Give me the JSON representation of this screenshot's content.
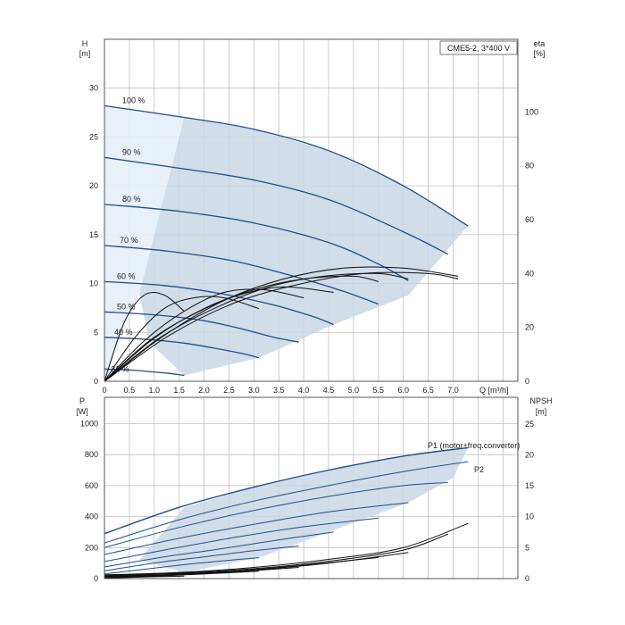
{
  "chart_data": [
    {
      "type": "line",
      "title": "CME5-2, 3*400 V",
      "xlabel": "Q [m³/h]",
      "x_axis": {
        "label": "Q",
        "unit": "[m³/h]",
        "range": [
          0,
          8.3
        ],
        "ticks": [
          0,
          0.5,
          1.0,
          1.5,
          2.0,
          2.5,
          3.0,
          3.5,
          4.0,
          4.5,
          5.0,
          5.5,
          6.0,
          6.5,
          7.0
        ],
        "tick_labels": [
          "0",
          "0.5",
          "1.0",
          "1.5",
          "2.0",
          "2.5",
          "3.0",
          "3.5",
          "4.0",
          "4.5",
          "5.0",
          "5.5",
          "6.0",
          "6.5",
          "7.0"
        ]
      },
      "y_left": {
        "label": "H",
        "unit": "[m]",
        "range": [
          0,
          35
        ],
        "ticks": [
          0,
          5,
          10,
          15,
          20,
          25,
          30
        ]
      },
      "y_right": {
        "label": "eta",
        "unit": "[%]",
        "range": [
          0,
          127
        ],
        "ticks": [
          0,
          20,
          40,
          60,
          80,
          100
        ]
      },
      "grid": true,
      "operating_area_color": "#c9d7e4",
      "curve_color": "#1f4e8c",
      "efficiency_color": "#111111",
      "speed_curves": [
        {
          "label": "100 %",
          "q": [
            0,
            1.6,
            3.0,
            4.5,
            6.0,
            7.3
          ],
          "h": [
            28.2,
            27.0,
            25.8,
            23.6,
            20.0,
            15.9
          ]
        },
        {
          "label": "90 %",
          "q": [
            0,
            1.5,
            3.0,
            4.5,
            6.0,
            6.9
          ],
          "h": [
            22.9,
            21.8,
            20.6,
            18.6,
            15.3,
            13.0
          ]
        },
        {
          "label": "80 %",
          "q": [
            0,
            1.5,
            3.0,
            4.5,
            5.5,
            6.1
          ],
          "h": [
            18.1,
            17.4,
            16.2,
            14.2,
            12.0,
            10.3
          ]
        },
        {
          "label": "70 %",
          "q": [
            0,
            1.3,
            2.6,
            3.9,
            4.8,
            5.5
          ],
          "h": [
            13.9,
            13.3,
            12.3,
            10.6,
            9.2,
            7.9
          ]
        },
        {
          "label": "60 %",
          "q": [
            0,
            1.2,
            2.3,
            3.4,
            4.2,
            4.6
          ],
          "h": [
            10.2,
            9.8,
            9.0,
            7.8,
            6.6,
            5.8
          ]
        },
        {
          "label": "50 %",
          "q": [
            0,
            1.0,
            2.0,
            2.8,
            3.4,
            3.9
          ],
          "h": [
            7.1,
            6.8,
            6.2,
            5.3,
            4.5,
            4.0
          ]
        },
        {
          "label": "40 %",
          "q": [
            0,
            0.8,
            1.6,
            2.3,
            2.8,
            3.1
          ],
          "h": [
            4.5,
            4.3,
            3.9,
            3.3,
            2.8,
            2.4
          ]
        },
        {
          "label": "21 %",
          "q": [
            0,
            0.5,
            0.9,
            1.3,
            1.6
          ],
          "h": [
            1.25,
            1.15,
            1.0,
            0.8,
            0.6
          ]
        }
      ],
      "efficiency_curves": [
        {
          "q": [
            0,
            0.4,
            0.8,
            1.2,
            1.6
          ],
          "eta": [
            0,
            22,
            32,
            32,
            26
          ]
        },
        {
          "q": [
            0,
            0.6,
            1.2,
            1.8,
            2.4,
            3.1
          ],
          "eta": [
            0,
            16,
            27,
            31,
            31,
            27
          ]
        },
        {
          "q": [
            0,
            0.8,
            1.6,
            2.4,
            3.2,
            4.0
          ],
          "eta": [
            0,
            15,
            26,
            33,
            34,
            31
          ]
        },
        {
          "q": [
            0,
            0.9,
            1.8,
            2.7,
            3.6,
            4.6
          ],
          "eta": [
            0,
            15,
            25,
            32,
            35,
            33
          ]
        },
        {
          "q": [
            0,
            1.0,
            2.0,
            3.0,
            4.0,
            5.0,
            5.5
          ],
          "eta": [
            0,
            16,
            27,
            34,
            38,
            39,
            37
          ]
        },
        {
          "q": [
            0,
            1.1,
            2.2,
            3.3,
            4.4,
            5.5,
            6.1
          ],
          "eta": [
            0,
            16,
            27,
            35,
            39,
            40,
            38
          ]
        },
        {
          "q": [
            0,
            1.3,
            2.6,
            3.9,
            5.2,
            6.5,
            7.1
          ],
          "eta": [
            0,
            17,
            29,
            36,
            40,
            40,
            38
          ]
        },
        {
          "q": [
            0,
            1.2,
            2.4,
            3.6,
            4.8,
            6.0,
            7.1
          ],
          "eta": [
            0,
            17,
            30,
            38,
            42,
            42,
            39
          ]
        }
      ],
      "labels": [
        "100 %",
        "90 %",
        "80 %",
        "70 %",
        "60 %",
        "50 %",
        "40 %",
        "21 %"
      ]
    },
    {
      "type": "line",
      "x_axis": {
        "range": [
          0,
          8.3
        ]
      },
      "y_left": {
        "label": "P",
        "unit": "[W]",
        "range": [
          0,
          1170
        ],
        "ticks": [
          0,
          200,
          400,
          600,
          800,
          1000
        ]
      },
      "y_right": {
        "label": "NPSH",
        "unit": "[m]",
        "range": [
          0,
          29.3
        ],
        "ticks": [
          0,
          5,
          10,
          15,
          20,
          25
        ]
      },
      "grid": true,
      "series": [
        {
          "name": "P1 (motor+freq.converter)",
          "q": [
            0,
            1.5,
            3.0,
            4.5,
            6.0,
            7.3
          ],
          "p": [
            290,
            460,
            590,
            700,
            790,
            845
          ]
        },
        {
          "name": "P2",
          "q": [
            0,
            1.5,
            3.0,
            4.5,
            6.0,
            7.3
          ],
          "p": [
            230,
            380,
            500,
            600,
            690,
            755
          ]
        }
      ],
      "power_curves_blue": [
        {
          "q": [
            0,
            1.5,
            3.0,
            4.5,
            6.0,
            6.9
          ],
          "p": [
            200,
            330,
            440,
            530,
            600,
            620
          ]
        },
        {
          "q": [
            0,
            1.5,
            3.0,
            4.5,
            6.1
          ],
          "p": [
            155,
            260,
            350,
            430,
            490
          ]
        },
        {
          "q": [
            0,
            1.3,
            2.6,
            3.9,
            5.5
          ],
          "p": [
            110,
            190,
            265,
            330,
            390
          ]
        },
        {
          "q": [
            0,
            1.2,
            2.3,
            3.4,
            4.6
          ],
          "p": [
            75,
            140,
            190,
            245,
            300
          ]
        },
        {
          "q": [
            0,
            1.0,
            2.0,
            3.0,
            3.9
          ],
          "p": [
            50,
            100,
            140,
            180,
            210
          ]
        },
        {
          "q": [
            0,
            0.8,
            1.6,
            2.4,
            3.1
          ],
          "p": [
            30,
            60,
            90,
            115,
            135
          ]
        },
        {
          "q": [
            0,
            0.5,
            1.0,
            1.6
          ],
          "p": [
            10,
            20,
            30,
            40
          ]
        }
      ],
      "npsh_curves": [
        {
          "q": [
            0,
            1.5,
            3.0,
            4.5,
            6.0,
            7.3
          ],
          "npsh": [
            0.6,
            1.0,
            1.8,
            3.1,
            5.0,
            8.9
          ]
        },
        {
          "q": [
            0,
            1.5,
            3.0,
            4.5,
            6.0,
            6.9
          ],
          "npsh": [
            0.5,
            0.9,
            1.6,
            2.8,
            4.6,
            7.2
          ]
        },
        {
          "q": [
            0,
            1.5,
            3.0,
            4.5,
            6.1
          ],
          "npsh": [
            0.4,
            0.8,
            1.4,
            2.5,
            4.2
          ]
        },
        {
          "q": [
            0,
            1.3,
            2.6,
            3.9,
            5.5
          ],
          "npsh": [
            0.3,
            0.6,
            1.2,
            2.1,
            3.4
          ]
        },
        {
          "q": [
            0,
            1.2,
            2.3,
            3.4,
            4.6
          ],
          "npsh": [
            0.2,
            0.5,
            1.0,
            1.7,
            2.6
          ]
        },
        {
          "q": [
            0,
            1.0,
            2.0,
            3.0,
            3.9
          ],
          "npsh": [
            0.2,
            0.4,
            0.8,
            1.3,
            1.8
          ]
        },
        {
          "q": [
            0,
            0.8,
            1.6,
            2.4,
            3.1
          ],
          "npsh": [
            0.1,
            0.3,
            0.6,
            0.9,
            1.2
          ]
        },
        {
          "q": [
            0,
            0.5,
            1.0,
            1.6
          ],
          "npsh": [
            0.1,
            0.2,
            0.3,
            0.4
          ]
        }
      ]
    }
  ]
}
